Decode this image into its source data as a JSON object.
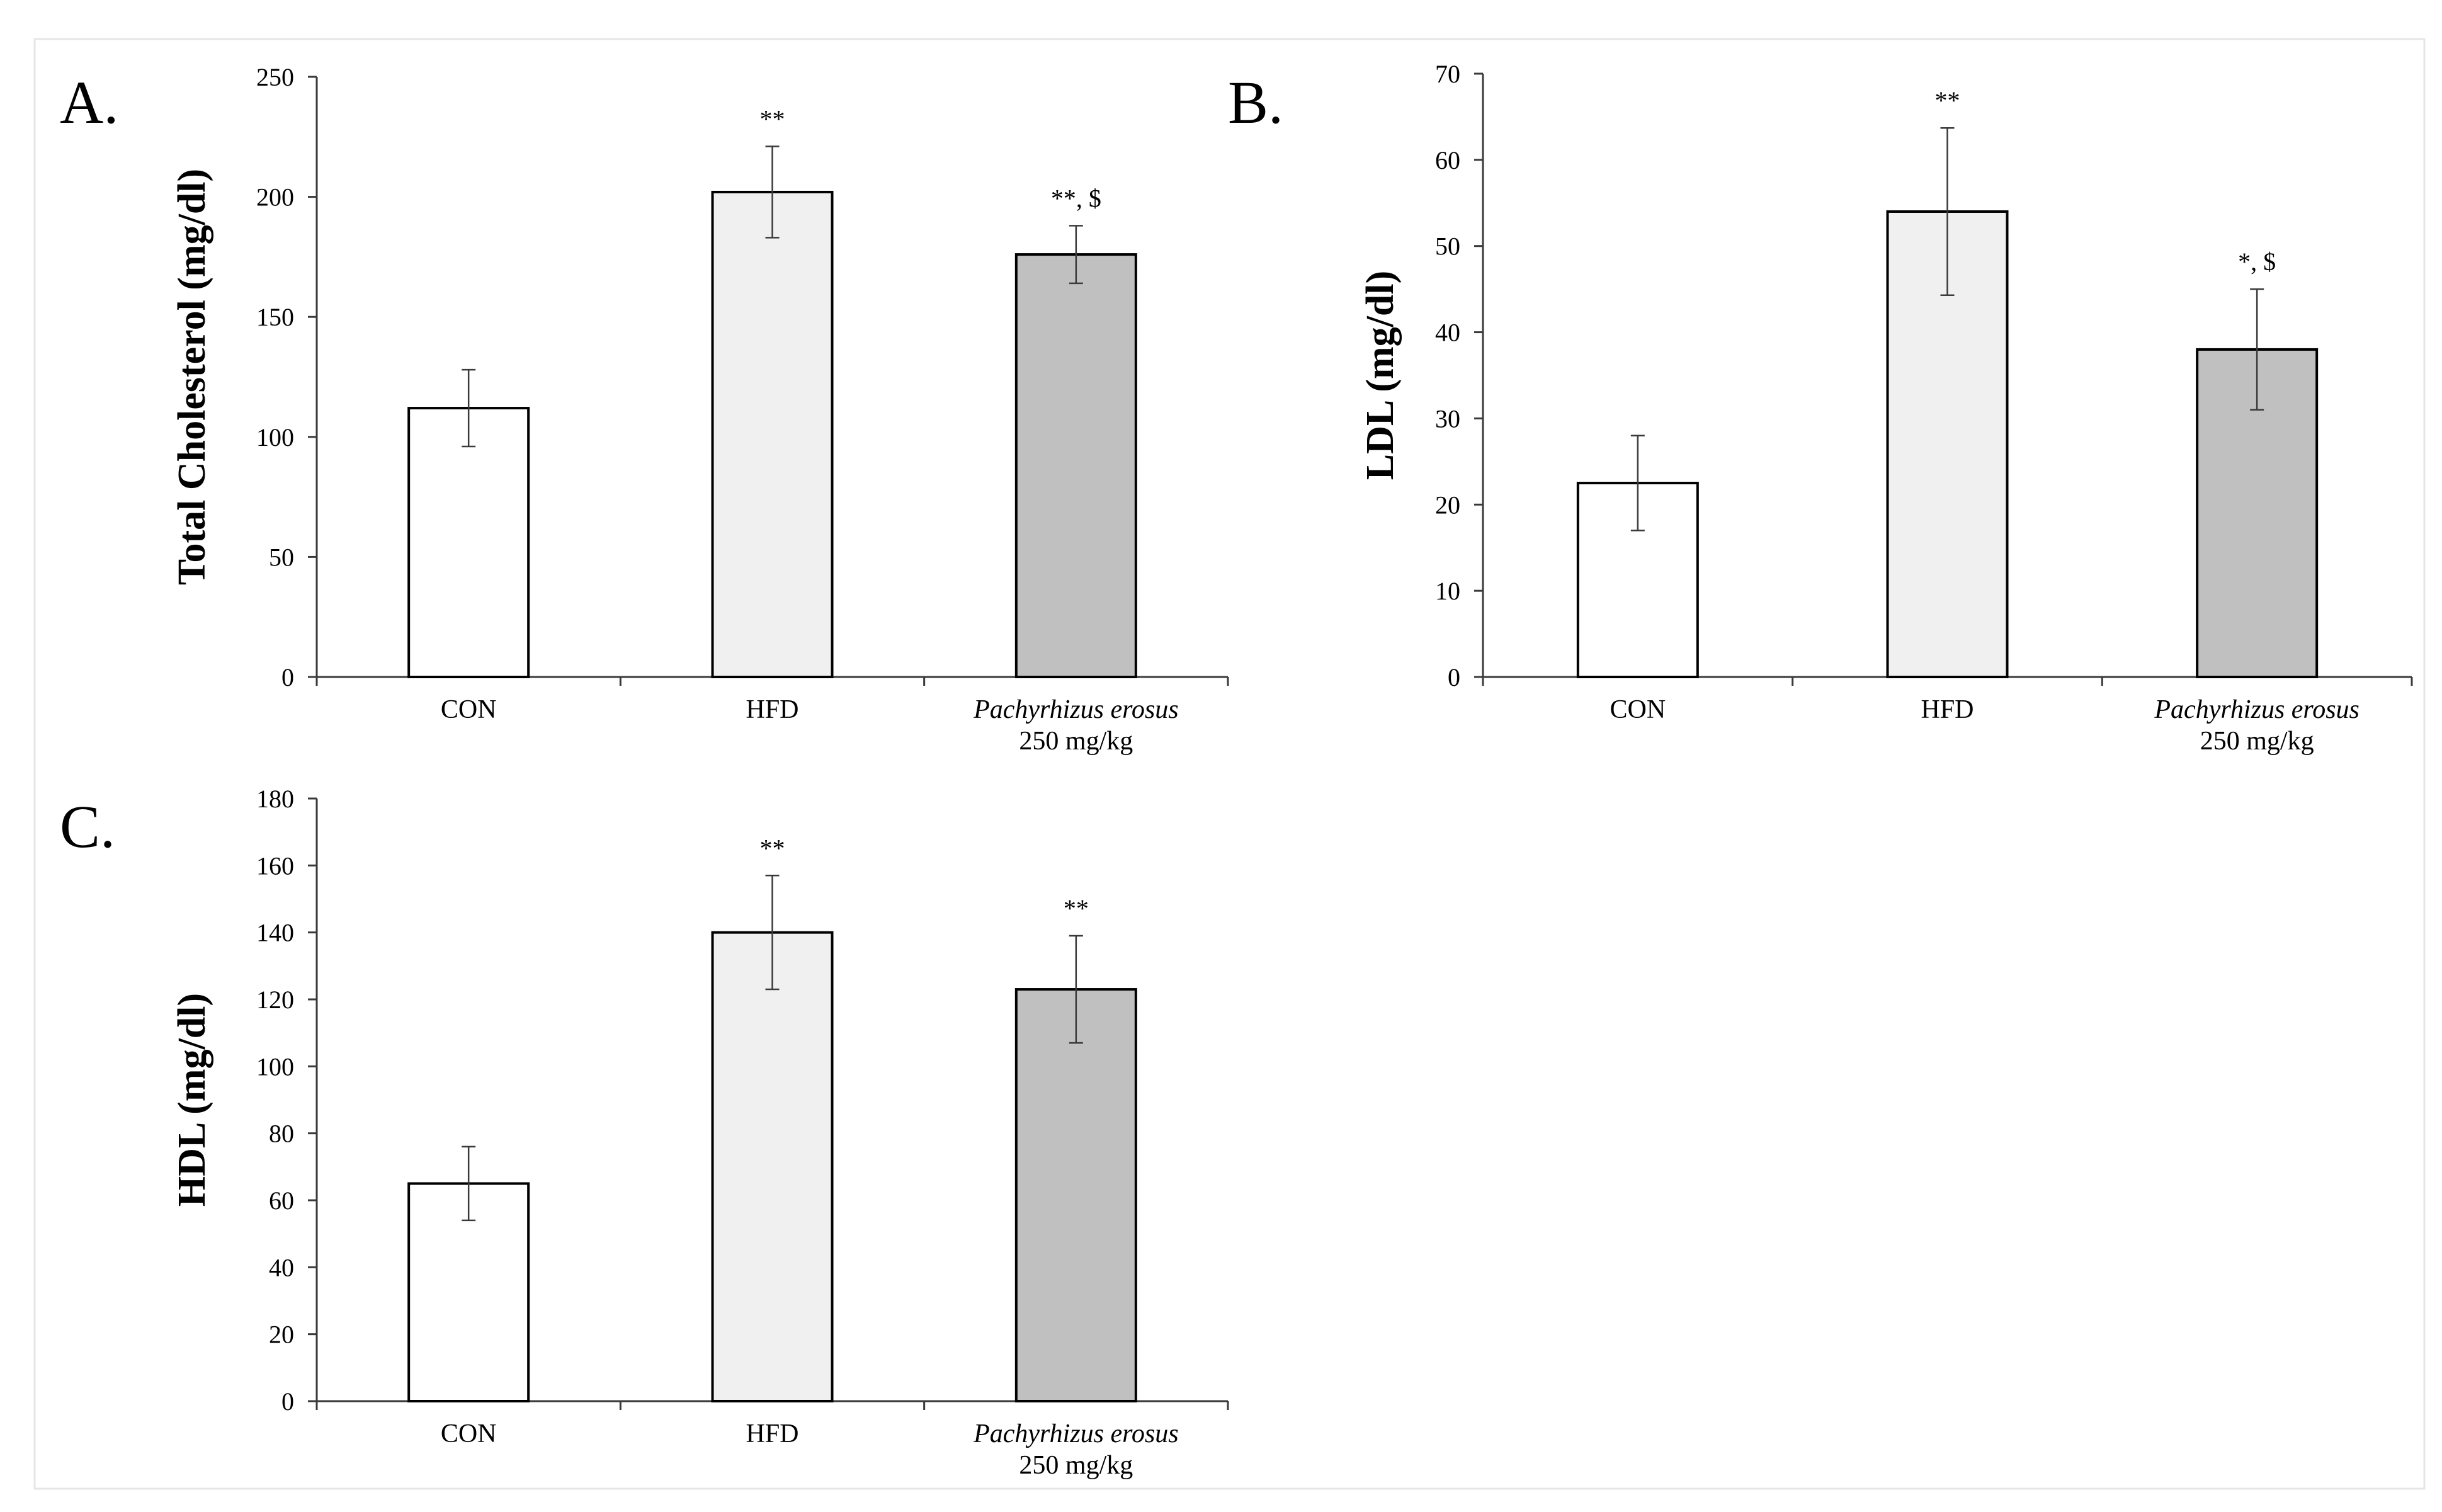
{
  "figure": {
    "background": "#ffffff",
    "frame_color": "#e6e6e6"
  },
  "chart_data": [
    {
      "id": "A",
      "panel_label": "A.",
      "type": "bar",
      "title": "",
      "ylabel": "Total Cholesterol (mg/dl)",
      "xlabel": "",
      "ylim": [
        0,
        250
      ],
      "yticks": [
        0,
        50,
        100,
        150,
        200,
        250
      ],
      "categories": [
        {
          "name": "CON",
          "sub": "",
          "italic": false
        },
        {
          "name": "HFD",
          "sub": "",
          "italic": false
        },
        {
          "name": "Pachyrhizus erosus",
          "sub": "250 mg/kg",
          "italic": true
        }
      ],
      "values": [
        112,
        202,
        176
      ],
      "errors": [
        16,
        19,
        12
      ],
      "annotations": [
        "",
        "**",
        "**, $"
      ],
      "bar_colors": [
        "#ffffff",
        "#f0f0f0",
        "#c0c0c0"
      ]
    },
    {
      "id": "B",
      "panel_label": "B.",
      "type": "bar",
      "title": "",
      "ylabel": "LDL (mg/dl)",
      "xlabel": "",
      "ylim": [
        0,
        70
      ],
      "yticks": [
        0,
        10,
        20,
        30,
        40,
        50,
        60,
        70
      ],
      "categories": [
        {
          "name": "CON",
          "sub": "",
          "italic": false
        },
        {
          "name": "HFD",
          "sub": "",
          "italic": false
        },
        {
          "name": "Pachyrhizus erosus",
          "sub": "250 mg/kg",
          "italic": true
        }
      ],
      "values": [
        22.5,
        54,
        38
      ],
      "errors": [
        5.5,
        9.7,
        7
      ],
      "annotations": [
        "",
        "**",
        "*, $"
      ],
      "bar_colors": [
        "#ffffff",
        "#f0f0f0",
        "#c0c0c0"
      ]
    },
    {
      "id": "C",
      "panel_label": "C.",
      "type": "bar",
      "title": "",
      "ylabel": "HDL (mg/dl)",
      "xlabel": "",
      "ylim": [
        0,
        180
      ],
      "yticks": [
        0,
        20,
        40,
        60,
        80,
        100,
        120,
        140,
        160,
        180
      ],
      "categories": [
        {
          "name": "CON",
          "sub": "",
          "italic": false
        },
        {
          "name": "HFD",
          "sub": "",
          "italic": false
        },
        {
          "name": "Pachyrhizus erosus",
          "sub": "250 mg/kg",
          "italic": true
        }
      ],
      "values": [
        65,
        140,
        123
      ],
      "errors": [
        11,
        17,
        16
      ],
      "annotations": [
        "",
        "**",
        "**"
      ],
      "bar_colors": [
        "#ffffff",
        "#f0f0f0",
        "#c0c0c0"
      ]
    }
  ]
}
